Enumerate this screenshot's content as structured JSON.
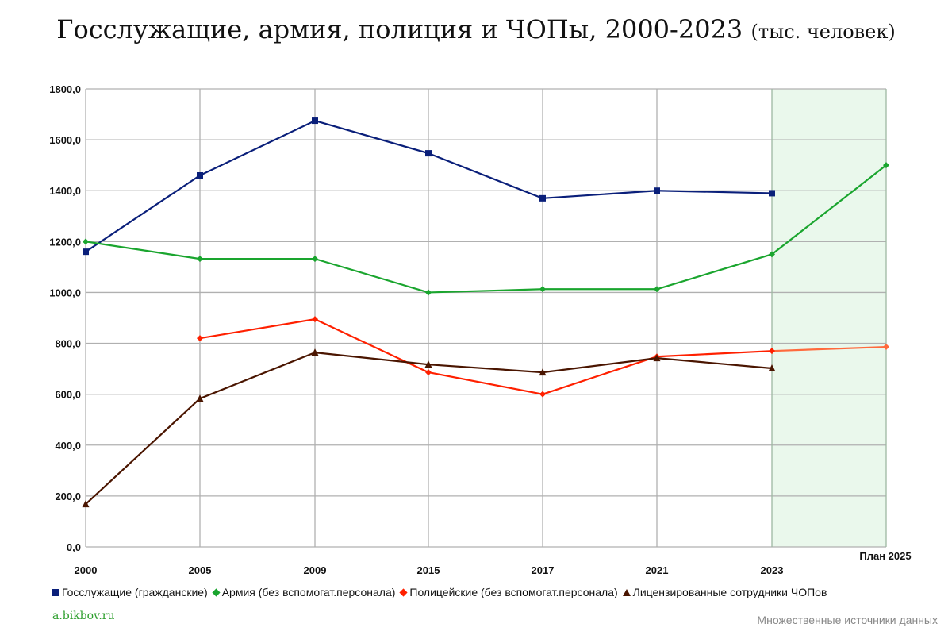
{
  "title": "Госслужащие, армия, полиция и ЧОПы, 2000-2023",
  "subtitle": "(тыс. человек)",
  "site": "a.bikbov.ru",
  "source": "Множественные источники данных",
  "chart_data": {
    "type": "line",
    "title": "Госслужащие, армия, полиция и ЧОПы, 2000-2023 (тыс. человек)",
    "categories": [
      "2000",
      "2005",
      "2009",
      "2015",
      "2017",
      "2021",
      "2023",
      "План 2025"
    ],
    "y_ticks": [
      "0,0",
      "200,0",
      "400,0",
      "600,0",
      "800,0",
      "1000,0",
      "1200,0",
      "1400,0",
      "1600,0",
      "1800,0"
    ],
    "ylim": [
      0,
      1800
    ],
    "grid": true,
    "legend_placement": "bottom",
    "shaded_region": {
      "from": "2023",
      "to": "План 2025",
      "color": "#eaf8ec"
    },
    "series": [
      {
        "name": "Госслужащие (гражданские)",
        "color": "#0a1f7a",
        "marker": "square",
        "values": [
          1160,
          1460,
          1675,
          1547,
          1370,
          1400,
          1390,
          null
        ]
      },
      {
        "name": "Армия (без вспомогат.персонала)",
        "color": "#1aa52e",
        "marker": "diamond",
        "values": [
          1200,
          1132,
          1132,
          1000,
          1013,
          1013,
          1150,
          1500
        ]
      },
      {
        "name": "Полицейские (без вспомогат.персонала)",
        "color": "#ff2000",
        "plan_color": "#ff6a3d",
        "marker": "diamond",
        "values": [
          null,
          820,
          895,
          686,
          600,
          748,
          770,
          786
        ]
      },
      {
        "name": "Лицензированные сотрудники ЧОПов",
        "color": "#4a1500",
        "marker": "triangle",
        "values": [
          168,
          583,
          764,
          717,
          686,
          742,
          702,
          null
        ]
      }
    ]
  }
}
